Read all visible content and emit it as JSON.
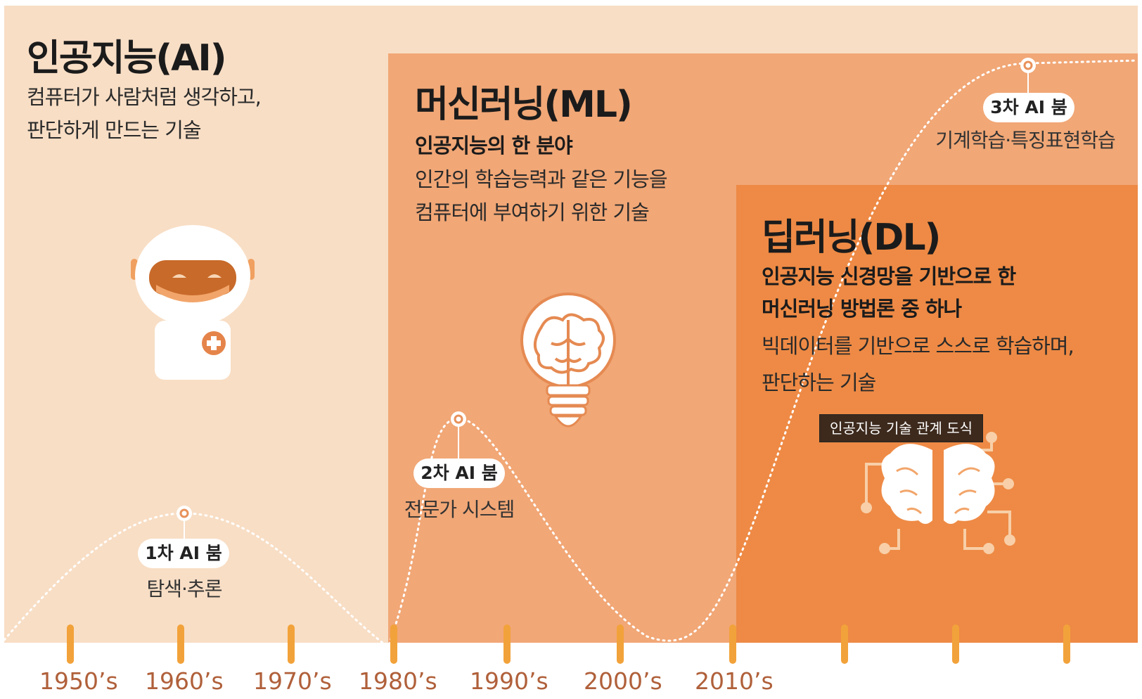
{
  "ai": {
    "title": "인공지능(AI)",
    "desc_lines": [
      "컴퓨터가 사람처럼 생각하고,",
      "판단하게 만드는 기술"
    ]
  },
  "ml": {
    "title": "머신러닝(ML)",
    "subtitle": "인공지능의 한 분야",
    "desc_lines": [
      "인간의 학습능력과 같은 기능을",
      "컴퓨터에 부여하기 위한 기술"
    ]
  },
  "dl": {
    "title": "딥러닝(DL)",
    "subtitle_lines": [
      "인공지능 신경망을 기반으로 한",
      "머신러닝 방법론 중 하나"
    ],
    "desc_lines": [
      "빅데이터를 기반으로 스스로 학습하며,",
      "판단하는 기술"
    ]
  },
  "booms": [
    {
      "label": "1차 AI 붐",
      "desc": "탐색·추론"
    },
    {
      "label": "2차 AI 붐",
      "desc": "전문가 시스템"
    },
    {
      "label": "3차 AI 붐",
      "desc": "기계학습·특징표현학습"
    }
  ],
  "timeline": {
    "years": [
      "1950’s",
      "1960’s",
      "1970’s",
      "1980’s",
      "1990’s",
      "2000’s",
      "2010’s"
    ],
    "tick_count": 10
  },
  "tooltip": "인공지능 기술 관계 도식",
  "colors": {
    "ai_bg": "#f8dec5",
    "ml_bg": "#f1a776",
    "dl_bg": "#ee8a45",
    "tick": "#f2a23a",
    "year_text": "#b0603a"
  },
  "icons": [
    "robot-icon",
    "lightbulb-brain-icon",
    "circuit-brain-icon"
  ]
}
